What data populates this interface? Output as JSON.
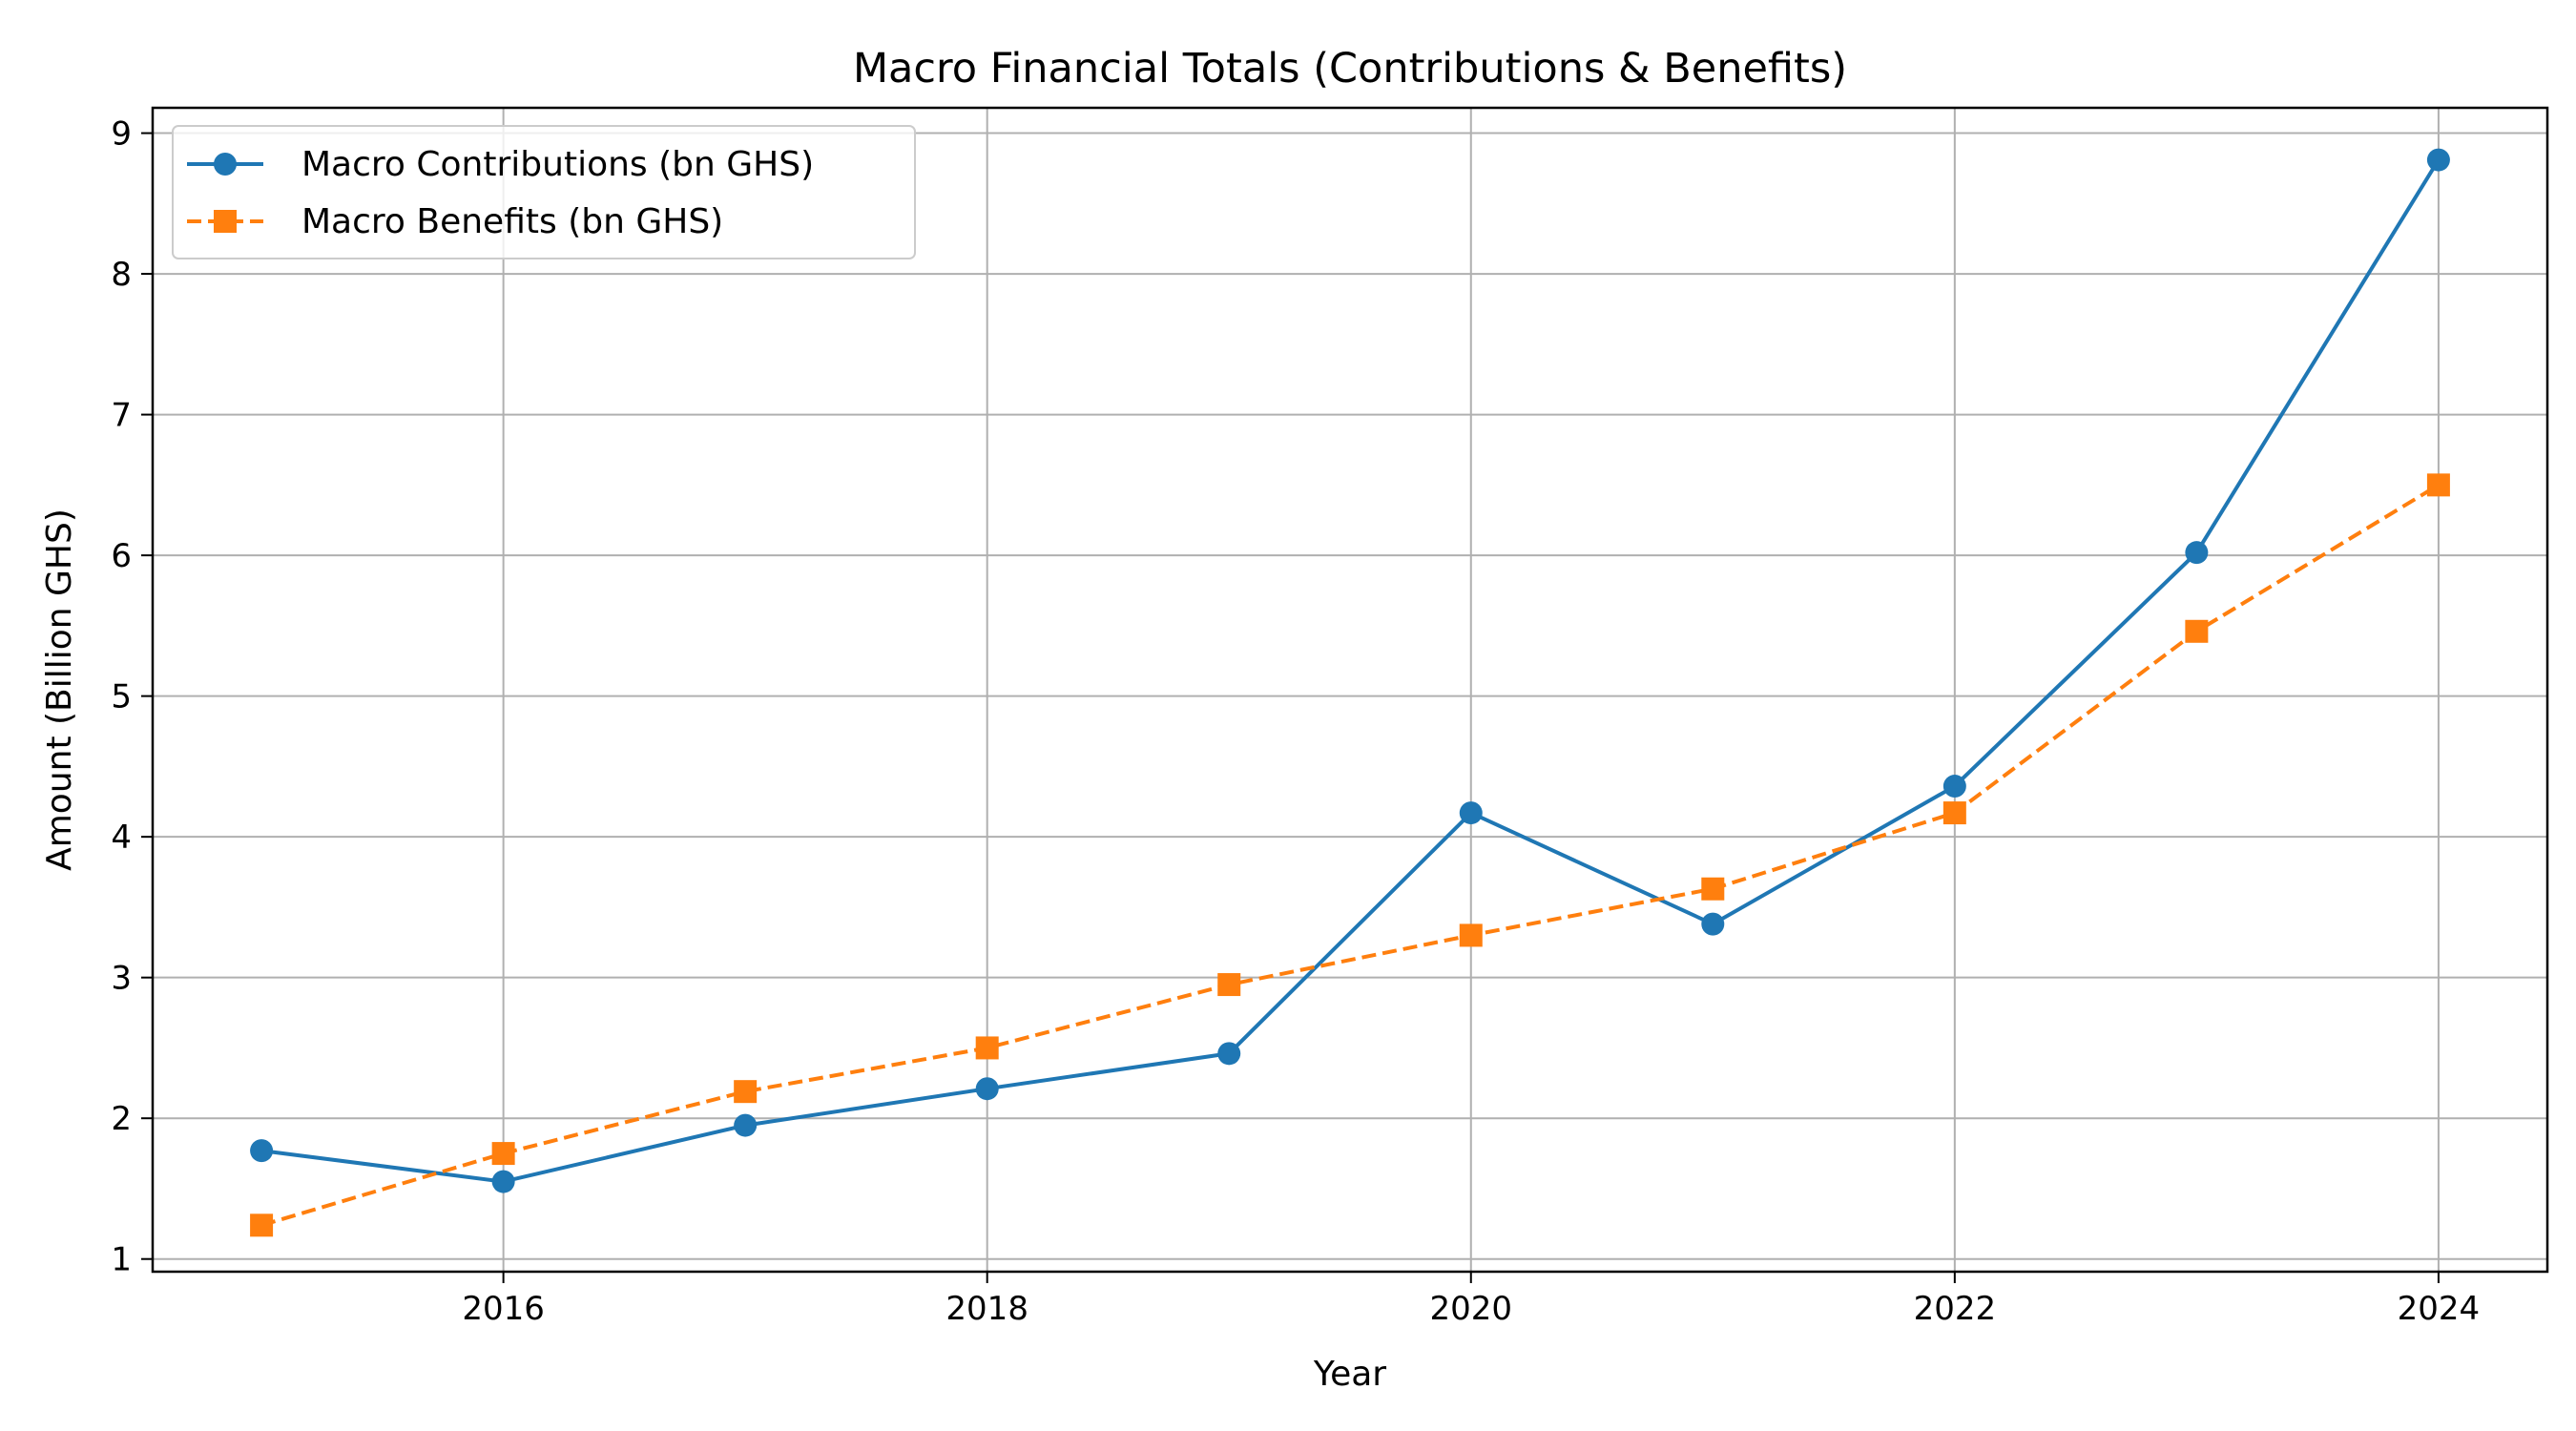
{
  "chart_data": {
    "type": "line",
    "title": "Macro Financial Totals (Contributions & Benefits)",
    "xlabel": "Year",
    "ylabel": "Amount (Billion GHS)",
    "x": [
      2015,
      2016,
      2017,
      2018,
      2019,
      2020,
      2021,
      2022,
      2023,
      2024
    ],
    "xlim": [
      2014.55,
      2024.45
    ],
    "ylim": [
      0.91,
      9.18
    ],
    "x_ticks": [
      2016,
      2018,
      2020,
      2022,
      2024
    ],
    "y_ticks": [
      1,
      2,
      3,
      4,
      5,
      6,
      7,
      8,
      9
    ],
    "grid": true,
    "legend_position": "upper-left",
    "series": [
      {
        "name": "Macro Contributions (bn GHS)",
        "values": [
          1.77,
          1.55,
          1.95,
          2.21,
          2.46,
          4.17,
          3.38,
          4.36,
          6.02,
          8.81
        ],
        "color": "#1f77b4",
        "line_style": "solid",
        "marker": "circle"
      },
      {
        "name": "Macro Benefits (bn GHS)",
        "values": [
          1.24,
          1.75,
          2.19,
          2.5,
          2.95,
          3.3,
          3.63,
          4.17,
          5.46,
          6.5
        ],
        "color": "#ff7f0e",
        "line_style": "dashed",
        "marker": "square"
      }
    ]
  }
}
